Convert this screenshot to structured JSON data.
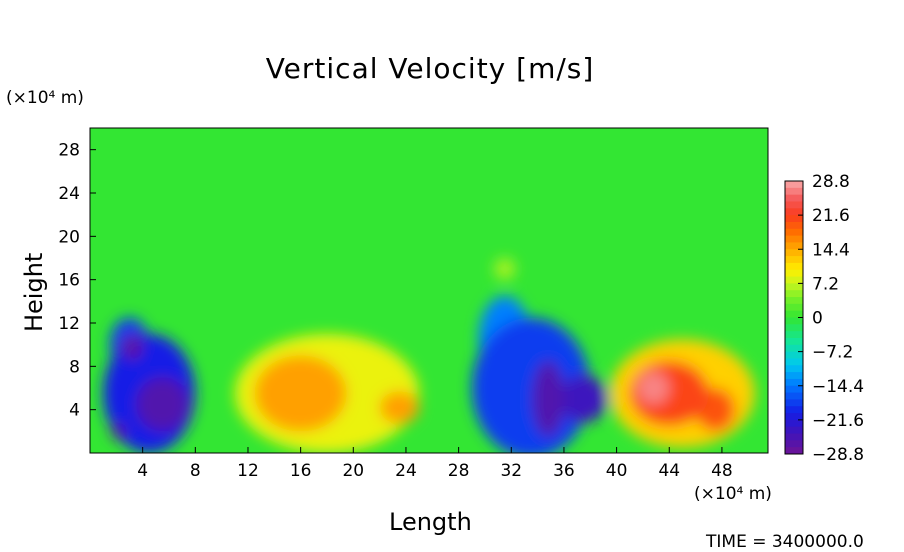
{
  "chart_data": {
    "type": "heatmap",
    "title": "Vertical Velocity [m/s]",
    "xlabel": "Length",
    "ylabel": "Height",
    "x_unit": "(×10⁴ m)",
    "y_unit": "(×10⁴ m)",
    "xlim": [
      0,
      51.5
    ],
    "ylim": [
      0,
      30
    ],
    "x_ticks": [
      4,
      8,
      12,
      16,
      20,
      24,
      28,
      32,
      36,
      40,
      44,
      48
    ],
    "y_ticks": [
      4,
      8,
      12,
      16,
      20,
      24,
      28
    ],
    "colorbar": {
      "ticks": [
        28.8,
        21.6,
        14.4,
        7.2,
        0,
        -7.2,
        -14.4,
        -21.6,
        -28.8
      ],
      "tick_labels": [
        "28.8",
        "21.6",
        "14.4",
        "7.2",
        "0",
        "−7.2",
        "−14.4",
        "−21.6",
        "−28.8"
      ],
      "range": [
        -28.8,
        28.8
      ]
    },
    "cells": [
      {
        "x": 4.5,
        "y": 5.5,
        "rx": 3.5,
        "ry": 5.5,
        "value": -20
      },
      {
        "x": 3.0,
        "y": 10.0,
        "rx": 1.5,
        "ry": 2.5,
        "value": -18
      },
      {
        "x": 5.5,
        "y": 4.5,
        "rx": 2.0,
        "ry": 2.5,
        "value": -26
      },
      {
        "x": 3.2,
        "y": 9.8,
        "rx": 0.8,
        "ry": 1.2,
        "value": -27
      },
      {
        "x": 2.2,
        "y": 2.0,
        "rx": 0.6,
        "ry": 0.8,
        "value": -26
      },
      {
        "x": 18.0,
        "y": 5.5,
        "rx": 7.0,
        "ry": 5.5,
        "value": 9
      },
      {
        "x": 16.0,
        "y": 5.5,
        "rx": 3.5,
        "ry": 3.5,
        "value": 15
      },
      {
        "x": 23.5,
        "y": 4.2,
        "rx": 1.5,
        "ry": 1.5,
        "value": 15
      },
      {
        "x": 33.5,
        "y": 6.0,
        "rx": 4.5,
        "ry": 6.5,
        "value": -18
      },
      {
        "x": 31.5,
        "y": 10.5,
        "rx": 2.0,
        "ry": 4.0,
        "value": -14
      },
      {
        "x": 34.8,
        "y": 5.0,
        "rx": 1.2,
        "ry": 3.5,
        "value": -26
      },
      {
        "x": 37.5,
        "y": 5.0,
        "rx": 1.8,
        "ry": 2.2,
        "value": -24
      },
      {
        "x": 31.5,
        "y": 17.0,
        "rx": 0.8,
        "ry": 1.0,
        "value": 6
      },
      {
        "x": 45.0,
        "y": 5.5,
        "rx": 5.5,
        "ry": 5.0,
        "value": 12
      },
      {
        "x": 44.0,
        "y": 5.5,
        "rx": 3.0,
        "ry": 3.0,
        "value": 21
      },
      {
        "x": 42.8,
        "y": 6.0,
        "rx": 1.2,
        "ry": 1.5,
        "value": 27
      },
      {
        "x": 47.5,
        "y": 4.0,
        "rx": 1.5,
        "ry": 2.0,
        "value": 20
      }
    ]
  },
  "footer": {
    "time_text": "TIME = 3400000.0"
  }
}
